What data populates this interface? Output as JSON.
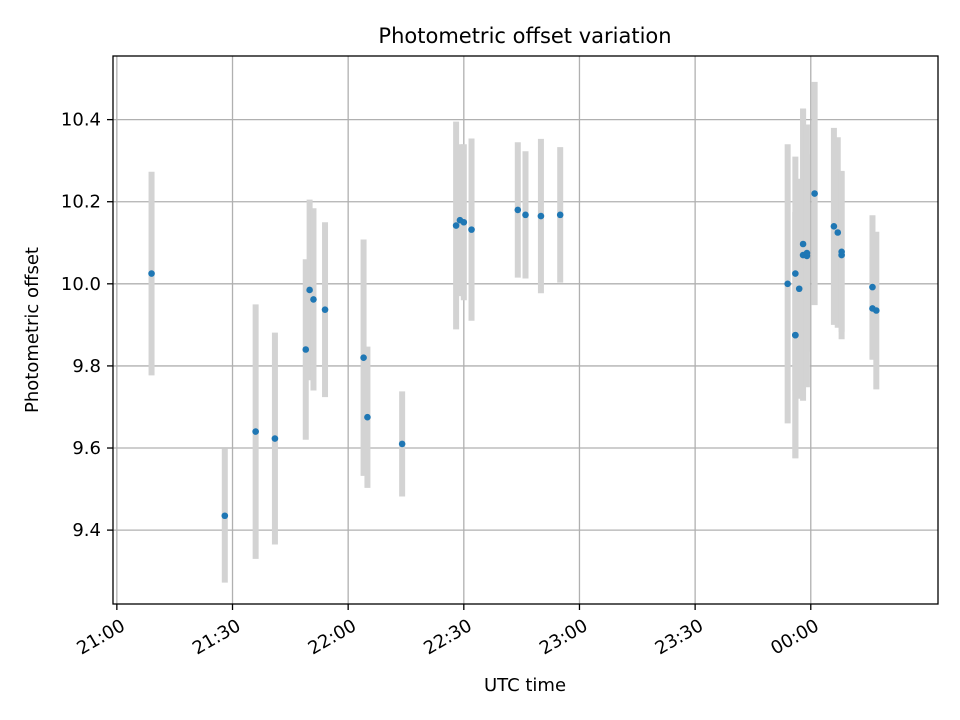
{
  "chart_data": {
    "type": "scatter",
    "title": "Photometric offset variation",
    "xlabel": "UTC time",
    "ylabel": "Photometric offset",
    "xlim": [
      "20:59",
      "00:33"
    ],
    "ylim": [
      9.22,
      10.555
    ],
    "grid": true,
    "x_ticks": [
      "21:00",
      "21:30",
      "22:00",
      "22:30",
      "23:00",
      "23:30",
      "00:00"
    ],
    "y_ticks": [
      9.4,
      9.6,
      9.8,
      10.0,
      10.2,
      10.4
    ],
    "y_tick_labels": [
      "9.4",
      "9.6",
      "9.8",
      "10.0",
      "10.2",
      "10.4"
    ],
    "colors": {
      "marker": "#1f77b4",
      "errorbar": "#d3d3d3",
      "grid": "#b0b0b0"
    },
    "points": [
      {
        "x": "21:09",
        "y": 10.025,
        "err": 0.248
      },
      {
        "x": "21:28",
        "y": 9.435,
        "err": 0.163
      },
      {
        "x": "21:36",
        "y": 9.64,
        "err": 0.31
      },
      {
        "x": "21:41",
        "y": 9.623,
        "err": 0.258
      },
      {
        "x": "21:49",
        "y": 9.84,
        "err": 0.22
      },
      {
        "x": "21:50",
        "y": 9.985,
        "err": 0.22
      },
      {
        "x": "21:51",
        "y": 9.962,
        "err": 0.222
      },
      {
        "x": "21:54",
        "y": 9.937,
        "err": 0.213
      },
      {
        "x": "22:04",
        "y": 9.82,
        "err": 0.288
      },
      {
        "x": "22:05",
        "y": 9.675,
        "err": 0.172
      },
      {
        "x": "22:14",
        "y": 9.61,
        "err": 0.128
      },
      {
        "x": "22:28",
        "y": 10.142,
        "err": 0.253
      },
      {
        "x": "22:29",
        "y": 10.155,
        "err": 0.185
      },
      {
        "x": "22:30",
        "y": 10.15,
        "err": 0.19
      },
      {
        "x": "22:32",
        "y": 10.132,
        "err": 0.222
      },
      {
        "x": "22:44",
        "y": 10.18,
        "err": 0.165
      },
      {
        "x": "22:46",
        "y": 10.168,
        "err": 0.155
      },
      {
        "x": "22:50",
        "y": 10.165,
        "err": 0.188
      },
      {
        "x": "22:55",
        "y": 10.168,
        "err": 0.165
      },
      {
        "x": "23:54",
        "y": 10.0,
        "err": 0.34
      },
      {
        "x": "23:56",
        "y": 9.875,
        "err": 0.3
      },
      {
        "x": "23:56",
        "y": 10.025,
        "err": 0.285
      },
      {
        "x": "23:56",
        "y": 9.875,
        "err": 0.3
      },
      {
        "x": "23:57",
        "y": 9.988,
        "err": 0.268
      },
      {
        "x": "23:58",
        "y": 10.097,
        "err": 0.33
      },
      {
        "x": "23:58",
        "y": 10.07,
        "err": 0.355
      },
      {
        "x": "23:59",
        "y": 10.068,
        "err": 0.32
      },
      {
        "x": "23:59",
        "y": 10.075,
        "err": 0.24
      },
      {
        "x": "00:01",
        "y": 10.22,
        "err": 0.272
      },
      {
        "x": "00:06",
        "y": 10.14,
        "err": 0.24
      },
      {
        "x": "00:07",
        "y": 10.125,
        "err": 0.232
      },
      {
        "x": "00:08",
        "y": 10.07,
        "err": 0.205
      },
      {
        "x": "00:08",
        "y": 10.078,
        "err": 0.195
      },
      {
        "x": "00:16",
        "y": 9.992,
        "err": 0.175
      },
      {
        "x": "00:16",
        "y": 9.94,
        "err": 0.125
      },
      {
        "x": "00:17",
        "y": 9.935,
        "err": 0.192
      }
    ]
  }
}
